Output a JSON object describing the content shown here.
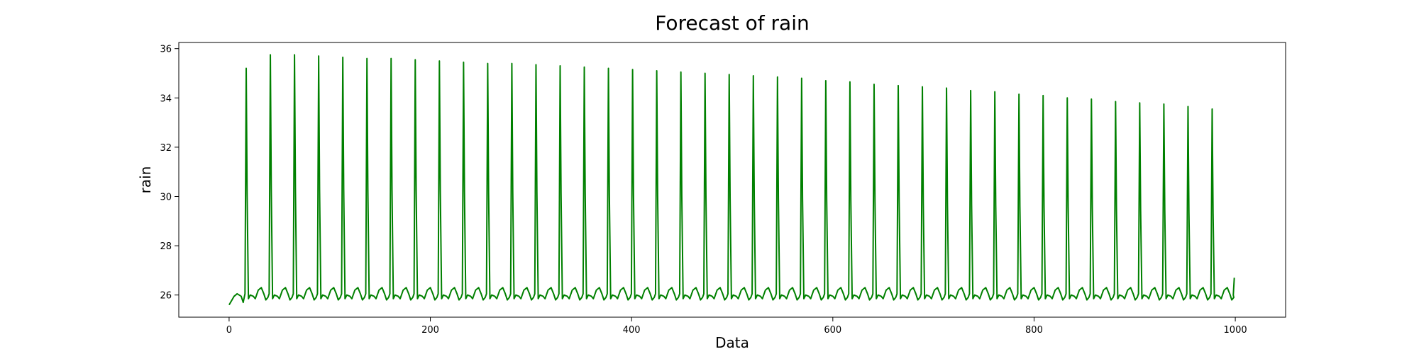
{
  "chart_data": {
    "type": "line",
    "title": "Forecast of rain",
    "xlabel": "Data",
    "ylabel": "rain",
    "xlim": [
      -50,
      1050
    ],
    "ylim": [
      25.1,
      36.25
    ],
    "xticks": [
      0,
      200,
      400,
      600,
      800,
      1000
    ],
    "yticks": [
      26,
      28,
      30,
      32,
      34,
      36
    ],
    "grid": false,
    "series": [
      {
        "color": "#008000",
        "x_start": 0,
        "x_end": 999,
        "start_values": [
          [
            0,
            25.6
          ],
          [
            5,
            25.95
          ],
          [
            8,
            26.05
          ],
          [
            12,
            25.95
          ],
          [
            14,
            25.7
          ]
        ],
        "end_value": 26.7,
        "baseline": 25.9,
        "secondary_bump": 26.3,
        "peaks": [
          {
            "x": 17,
            "y": 35.2
          },
          {
            "x": 41,
            "y": 35.75
          },
          {
            "x": 65,
            "y": 35.75
          },
          {
            "x": 89,
            "y": 35.7
          },
          {
            "x": 113,
            "y": 35.65
          },
          {
            "x": 137,
            "y": 35.6
          },
          {
            "x": 161,
            "y": 35.6
          },
          {
            "x": 185,
            "y": 35.55
          },
          {
            "x": 209,
            "y": 35.5
          },
          {
            "x": 233,
            "y": 35.45
          },
          {
            "x": 257,
            "y": 35.4
          },
          {
            "x": 281,
            "y": 35.4
          },
          {
            "x": 305,
            "y": 35.35
          },
          {
            "x": 329,
            "y": 35.3
          },
          {
            "x": 353,
            "y": 35.25
          },
          {
            "x": 377,
            "y": 35.2
          },
          {
            "x": 401,
            "y": 35.15
          },
          {
            "x": 425,
            "y": 35.1
          },
          {
            "x": 449,
            "y": 35.05
          },
          {
            "x": 473,
            "y": 35.0
          },
          {
            "x": 497,
            "y": 34.95
          },
          {
            "x": 521,
            "y": 34.9
          },
          {
            "x": 545,
            "y": 34.85
          },
          {
            "x": 569,
            "y": 34.8
          },
          {
            "x": 593,
            "y": 34.7
          },
          {
            "x": 617,
            "y": 34.65
          },
          {
            "x": 641,
            "y": 34.55
          },
          {
            "x": 665,
            "y": 34.5
          },
          {
            "x": 689,
            "y": 34.45
          },
          {
            "x": 713,
            "y": 34.4
          },
          {
            "x": 737,
            "y": 34.3
          },
          {
            "x": 761,
            "y": 34.25
          },
          {
            "x": 785,
            "y": 34.15
          },
          {
            "x": 809,
            "y": 34.1
          },
          {
            "x": 833,
            "y": 34.0
          },
          {
            "x": 857,
            "y": 33.95
          },
          {
            "x": 881,
            "y": 33.85
          },
          {
            "x": 905,
            "y": 33.8
          },
          {
            "x": 929,
            "y": 33.75
          },
          {
            "x": 953,
            "y": 33.65
          },
          {
            "x": 977,
            "y": 33.55
          }
        ]
      }
    ]
  }
}
